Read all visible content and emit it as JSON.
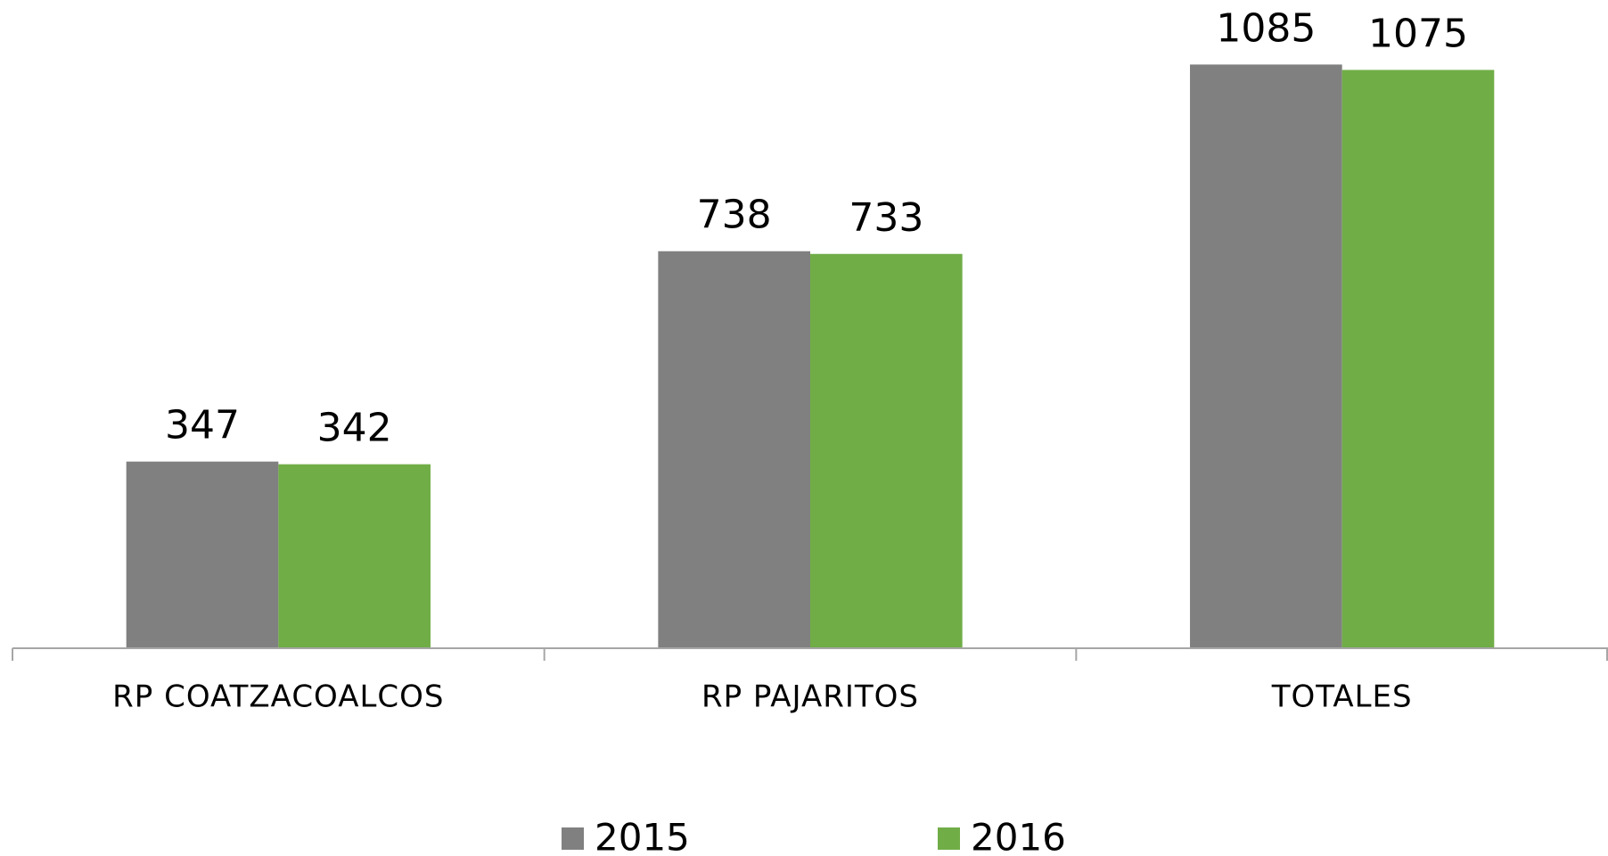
{
  "chart_data": {
    "type": "bar",
    "categories": [
      "RP COATZACOALCOS",
      "RP PAJARITOS",
      "TOTALES"
    ],
    "series": [
      {
        "name": "2015",
        "color": "#808080",
        "values": [
          347,
          738,
          1085
        ]
      },
      {
        "name": "2016",
        "color": "#70ad47",
        "values": [
          342,
          733,
          1075
        ]
      }
    ],
    "ylim": [
      0,
      1200
    ],
    "legend": "bottom"
  }
}
